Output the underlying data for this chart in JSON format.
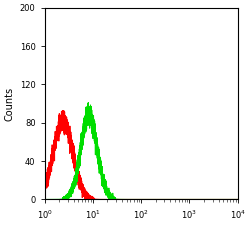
{
  "title": "",
  "xlabel": "",
  "ylabel": "Counts",
  "xlim_log": [
    0,
    4
  ],
  "ylim": [
    0,
    200
  ],
  "yticks": [
    0,
    40,
    80,
    120,
    160,
    200
  ],
  "red_peak_log_mean": 0.38,
  "red_peak_log_sigma": 0.2,
  "red_peak_height": 82,
  "green_peak_log_mean": 0.92,
  "green_peak_log_sigma": 0.17,
  "green_peak_height": 88,
  "red_color": "#ff0000",
  "green_color": "#00dd00",
  "bg_color": "#ffffff",
  "noise_seed": 42
}
